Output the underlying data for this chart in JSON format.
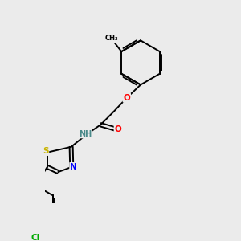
{
  "background_color": "#ebebeb",
  "atom_colors": {
    "S": "#c8b400",
    "N": "#0000ff",
    "O": "#ff0000",
    "Cl": "#00aa00",
    "C": "#000000",
    "H": "#4a8a8a"
  },
  "bond_color": "#000000",
  "bond_width": 1.4,
  "figsize": [
    3.0,
    3.0
  ],
  "dpi": 100
}
